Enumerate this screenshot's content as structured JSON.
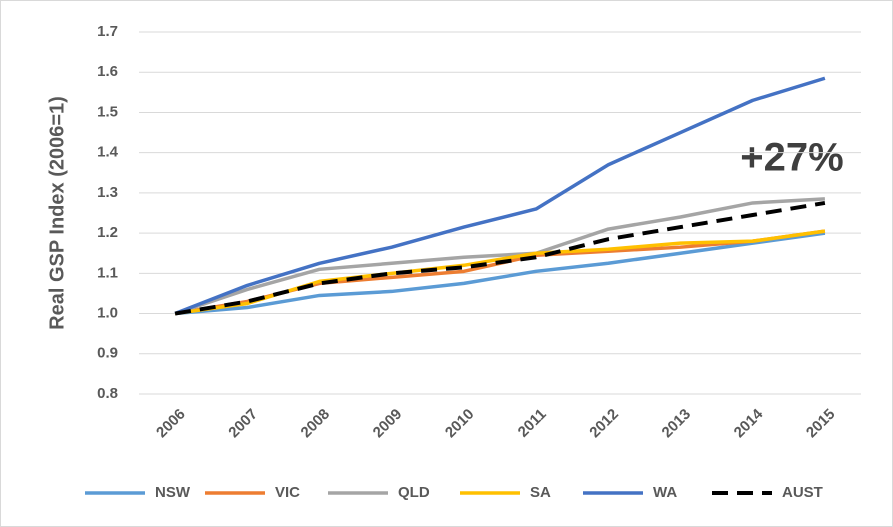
{
  "chart_data": {
    "type": "line",
    "y_label": "Real GSP Index (2006=1)",
    "annotation": "+27%",
    "categories": [
      "2006",
      "2007",
      "2008",
      "2009",
      "2010",
      "2011",
      "2012",
      "2013",
      "2014",
      "2015"
    ],
    "series": [
      {
        "name": "NSW",
        "color": "#5b9bd5",
        "dashed": false,
        "values": [
          1.0,
          1.015,
          1.045,
          1.055,
          1.075,
          1.105,
          1.125,
          1.15,
          1.175,
          1.2
        ]
      },
      {
        "name": "VIC",
        "color": "#ed7d31",
        "dashed": false,
        "values": [
          1.0,
          1.03,
          1.075,
          1.09,
          1.105,
          1.145,
          1.155,
          1.165,
          1.18,
          1.205
        ]
      },
      {
        "name": "QLD",
        "color": "#a5a5a5",
        "dashed": false,
        "values": [
          1.0,
          1.06,
          1.11,
          1.125,
          1.14,
          1.15,
          1.21,
          1.24,
          1.275,
          1.285
        ]
      },
      {
        "name": "SA",
        "color": "#ffc000",
        "dashed": false,
        "values": [
          1.0,
          1.025,
          1.08,
          1.1,
          1.12,
          1.15,
          1.16,
          1.175,
          1.18,
          1.205
        ]
      },
      {
        "name": "WA",
        "color": "#4472c4",
        "dashed": false,
        "values": [
          1.0,
          1.07,
          1.125,
          1.165,
          1.215,
          1.26,
          1.37,
          1.45,
          1.53,
          1.585
        ]
      },
      {
        "name": "AUST",
        "color": "#000000",
        "dashed": true,
        "values": [
          1.0,
          1.03,
          1.075,
          1.1,
          1.115,
          1.14,
          1.185,
          1.215,
          1.245,
          1.275
        ]
      }
    ],
    "ylim": [
      0.8,
      1.7
    ],
    "yticks": [
      0.8,
      0.9,
      {
        "value": 1,
        "label": "1.0"
      },
      1.1,
      1.2,
      1.3,
      1.4,
      1.5,
      1.6,
      1.7
    ],
    "grid": true,
    "legend": "bottom"
  }
}
